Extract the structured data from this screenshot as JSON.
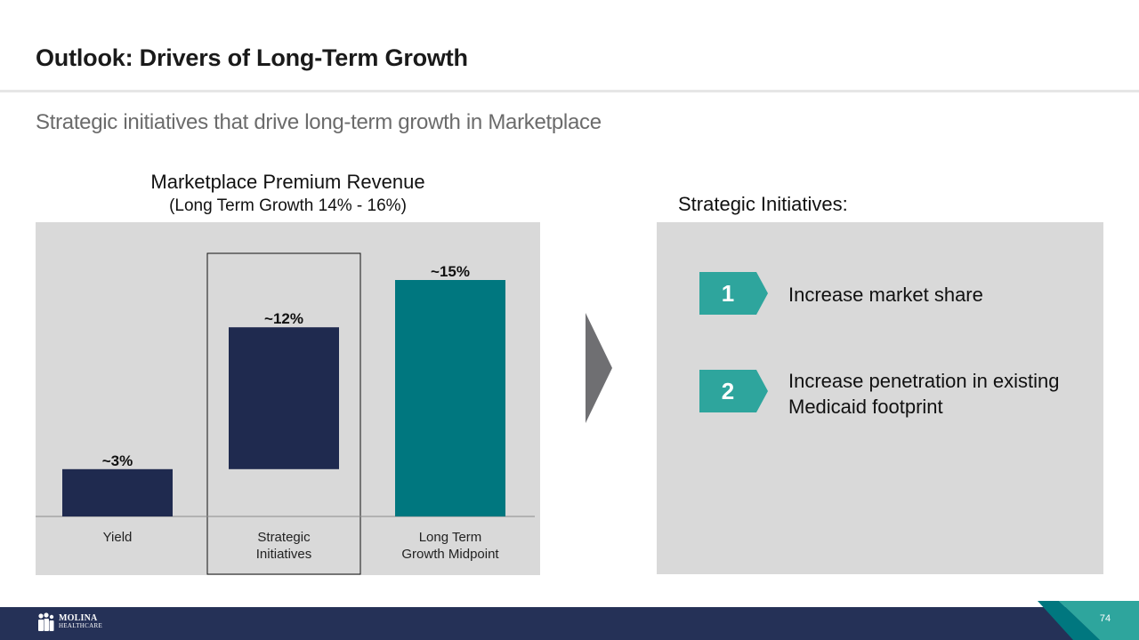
{
  "slide": {
    "title": "Outlook: Drivers of Long-Term Growth",
    "subtitle": "Strategic initiatives that drive long-term growth in Marketplace",
    "page_number": "74"
  },
  "chart_data": {
    "type": "bar",
    "title": "Marketplace Premium Revenue",
    "subtitle": "(Long Term Growth 14% - 16%)",
    "subtype": "waterfall",
    "categories": [
      "Yield",
      "Strategic Initiatives",
      "Long Term Growth Midpoint"
    ],
    "category_lines": [
      [
        "Yield"
      ],
      [
        "Strategic",
        "Initiatives"
      ],
      [
        "Long Term",
        "Growth Midpoint"
      ]
    ],
    "values": [
      3,
      12,
      15
    ],
    "bar_bottoms": [
      0,
      3,
      0
    ],
    "data_labels": [
      "~3%",
      "~12%",
      "~15%"
    ],
    "colors": [
      "#1f2a4f",
      "#1f2a4f",
      "#00777f"
    ],
    "highlight_category": "Strategic Initiatives",
    "ylim": [
      0,
      15
    ],
    "xlabel": "",
    "ylabel": "",
    "grid": false
  },
  "initiatives": {
    "heading": "Strategic Initiatives:",
    "badge_color": "#2ea59d",
    "items": [
      {
        "number": "1",
        "text": "Increase market share"
      },
      {
        "number": "2",
        "text": "Increase penetration in existing Medicaid footprint"
      }
    ]
  },
  "footer": {
    "logo_line1": "MOLINA",
    "logo_line2": "HEALTHCARE",
    "color": "#253157"
  }
}
